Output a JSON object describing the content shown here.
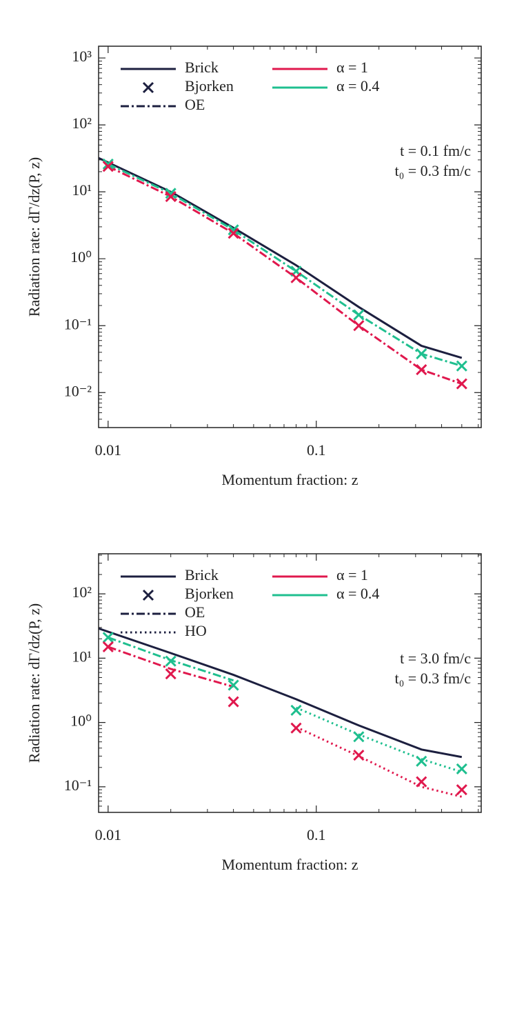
{
  "chart_data": [
    {
      "type": "line",
      "xlog": true,
      "ylog": true,
      "xlabel": "Momentum fraction: z",
      "ylabel": "Radiation rate: dΓ/dz(P, z)",
      "xlim": [
        0.009,
        0.62
      ],
      "ylim": [
        0.003,
        1500
      ],
      "xticks": [
        0.01,
        0.1
      ],
      "yticks": [
        {
          "value": 0.01,
          "label": "10⁻²"
        },
        {
          "value": 0.1,
          "label": "10⁻¹"
        },
        {
          "value": 1,
          "label": "10⁰"
        },
        {
          "value": 10,
          "label": "10¹"
        },
        {
          "value": 100,
          "label": "10²"
        },
        {
          "value": 1000,
          "label": "10³"
        }
      ],
      "annotations": [
        "t = 0.1 fm/c",
        "t₀ = 0.3 fm/c"
      ],
      "legend": [
        [
          {
            "label": "Brick",
            "style": "line",
            "color": "#1c1f3f"
          },
          {
            "label": "Bjorken",
            "style": "marker",
            "color": "#1c1f3f"
          },
          {
            "label": "OE",
            "style": "dashdot",
            "color": "#1c1f3f"
          }
        ],
        [
          {
            "label": "α = 1",
            "style": "line",
            "color": "#e0184d"
          },
          {
            "label": "α = 0.4",
            "style": "line",
            "color": "#1fbf8f"
          }
        ]
      ],
      "series": [
        {
          "style": "line",
          "color": "#1c1f3f",
          "x": [
            0.009,
            0.02,
            0.04,
            0.08,
            0.16,
            0.32,
            0.5
          ],
          "values": [
            32,
            10,
            2.9,
            0.8,
            0.19,
            0.05,
            0.033
          ]
        },
        {
          "style": "dashdot",
          "color": "#1fbf8f",
          "x": [
            0.01,
            0.02,
            0.04,
            0.08,
            0.16,
            0.32,
            0.5
          ],
          "values": [
            26,
            9.5,
            2.7,
            0.65,
            0.145,
            0.038,
            0.025
          ]
        },
        {
          "style": "dashdot",
          "color": "#e0184d",
          "x": [
            0.01,
            0.02,
            0.04,
            0.08,
            0.16,
            0.32,
            0.5
          ],
          "values": [
            24,
            8.5,
            2.4,
            0.52,
            0.1,
            0.022,
            0.0135
          ]
        },
        {
          "style": "marker",
          "color": "#1fbf8f",
          "x": [
            0.01,
            0.02,
            0.04,
            0.08,
            0.16,
            0.32,
            0.5
          ],
          "values": [
            26,
            9.5,
            2.7,
            0.65,
            0.145,
            0.038,
            0.025
          ]
        },
        {
          "style": "marker",
          "color": "#e0184d",
          "x": [
            0.01,
            0.02,
            0.04,
            0.08,
            0.16,
            0.32,
            0.5
          ],
          "values": [
            24,
            8.5,
            2.4,
            0.52,
            0.1,
            0.022,
            0.0135
          ]
        }
      ]
    },
    {
      "type": "line",
      "xlog": true,
      "ylog": true,
      "xlabel": "Momentum fraction: z",
      "ylabel": "Radiation rate: dΓ/dz(P, z)",
      "xlim": [
        0.009,
        0.62
      ],
      "ylim": [
        0.04,
        420
      ],
      "xticks": [
        0.01,
        0.1
      ],
      "yticks": [
        {
          "value": 0.1,
          "label": "10⁻¹"
        },
        {
          "value": 1,
          "label": "10⁰"
        },
        {
          "value": 10,
          "label": "10¹"
        },
        {
          "value": 100,
          "label": "10²"
        }
      ],
      "annotations": [
        "t = 3.0 fm/c",
        "t₀ = 0.3 fm/c"
      ],
      "legend": [
        [
          {
            "label": "Brick",
            "style": "line",
            "color": "#1c1f3f"
          },
          {
            "label": "Bjorken",
            "style": "marker",
            "color": "#1c1f3f"
          },
          {
            "label": "OE",
            "style": "dashdot",
            "color": "#1c1f3f"
          },
          {
            "label": "HO",
            "style": "dotted",
            "color": "#1c1f3f"
          }
        ],
        [
          {
            "label": "α = 1",
            "style": "line",
            "color": "#e0184d"
          },
          {
            "label": "α = 0.4",
            "style": "line",
            "color": "#1fbf8f"
          }
        ]
      ],
      "series": [
        {
          "style": "line",
          "color": "#1c1f3f",
          "x": [
            0.009,
            0.02,
            0.04,
            0.08,
            0.16,
            0.32,
            0.5
          ],
          "values": [
            29,
            12,
            5.5,
            2.3,
            0.9,
            0.38,
            0.29
          ]
        },
        {
          "style": "dashdot",
          "color": "#1fbf8f",
          "x": [
            0.01,
            0.02,
            0.04
          ],
          "values": [
            21,
            9.3,
            4.5
          ]
        },
        {
          "style": "dashdot",
          "color": "#e0184d",
          "x": [
            0.01,
            0.02,
            0.04
          ],
          "values": [
            15,
            6.8,
            3.6
          ]
        },
        {
          "style": "dotted",
          "color": "#1fbf8f",
          "x": [
            0.08,
            0.16,
            0.32,
            0.5
          ],
          "values": [
            1.7,
            0.65,
            0.27,
            0.17
          ]
        },
        {
          "style": "dotted",
          "color": "#e0184d",
          "x": [
            0.08,
            0.16,
            0.32,
            0.5
          ],
          "values": [
            0.85,
            0.3,
            0.1,
            0.07
          ]
        },
        {
          "style": "marker",
          "color": "#1fbf8f",
          "x": [
            0.01,
            0.02,
            0.04,
            0.08,
            0.16,
            0.32,
            0.5
          ],
          "values": [
            21,
            9,
            3.8,
            1.55,
            0.6,
            0.25,
            0.19
          ]
        },
        {
          "style": "marker",
          "color": "#e0184d",
          "x": [
            0.01,
            0.02,
            0.04,
            0.08,
            0.16,
            0.32,
            0.5
          ],
          "values": [
            15,
            5.7,
            2.1,
            0.82,
            0.31,
            0.12,
            0.09
          ]
        }
      ]
    }
  ]
}
